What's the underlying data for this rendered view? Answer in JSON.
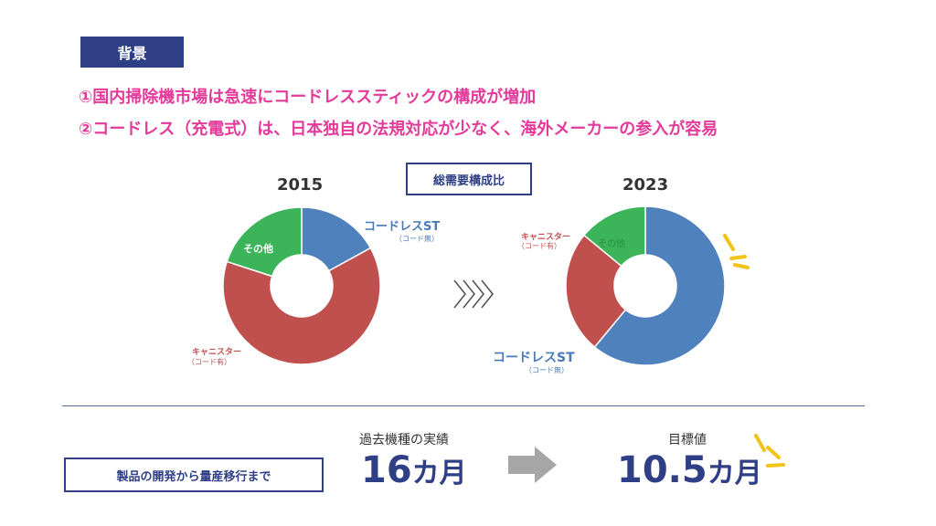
{
  "header": {
    "label": "背景",
    "points": [
      "①国内掃除機市場は急速にコードレススティックの構成が増加",
      "②コードレス（充電式）は、日本独自の法規対応が少なく、海外メーカーの参入が容易"
    ]
  },
  "chart_title": "総需要構成比",
  "chart_data": [
    {
      "type": "pie",
      "title": "2015",
      "donut": true,
      "categories": [
        "コードレスST\n（コード無）",
        "キャニスター\n（コード有）",
        "その他"
      ],
      "values": [
        17,
        63,
        20
      ],
      "colors": [
        "#4f81bd",
        "#c0504d",
        "#3cb55a"
      ]
    },
    {
      "type": "pie",
      "title": "2023",
      "donut": true,
      "categories": [
        "コードレスST\n（コード無）",
        "キャニスター\n（コード有）",
        "その他"
      ],
      "values": [
        61,
        25,
        14
      ],
      "colors": [
        "#4f81bd",
        "#c0504d",
        "#3cb55a"
      ]
    }
  ],
  "labels": {
    "cordless_main": "コードレスST",
    "cordless_sub": "（コード無）",
    "canister_main": "キャニスター",
    "canister_sub": "（コード有）",
    "other": "その他"
  },
  "arrow_glyph": "》》》",
  "bottom": {
    "label": "製品の開発から量産移行まで",
    "actual_caption": "過去機種の実績",
    "actual_number": "16",
    "actual_unit": "カ月",
    "target_caption": "目標値",
    "target_number": "10.5",
    "target_unit": "カ月"
  },
  "colors": {
    "navy": "#2f3f86",
    "accent": "#e43a9a",
    "highlight": "#f2c318",
    "arrow": "#a6a6a6"
  }
}
